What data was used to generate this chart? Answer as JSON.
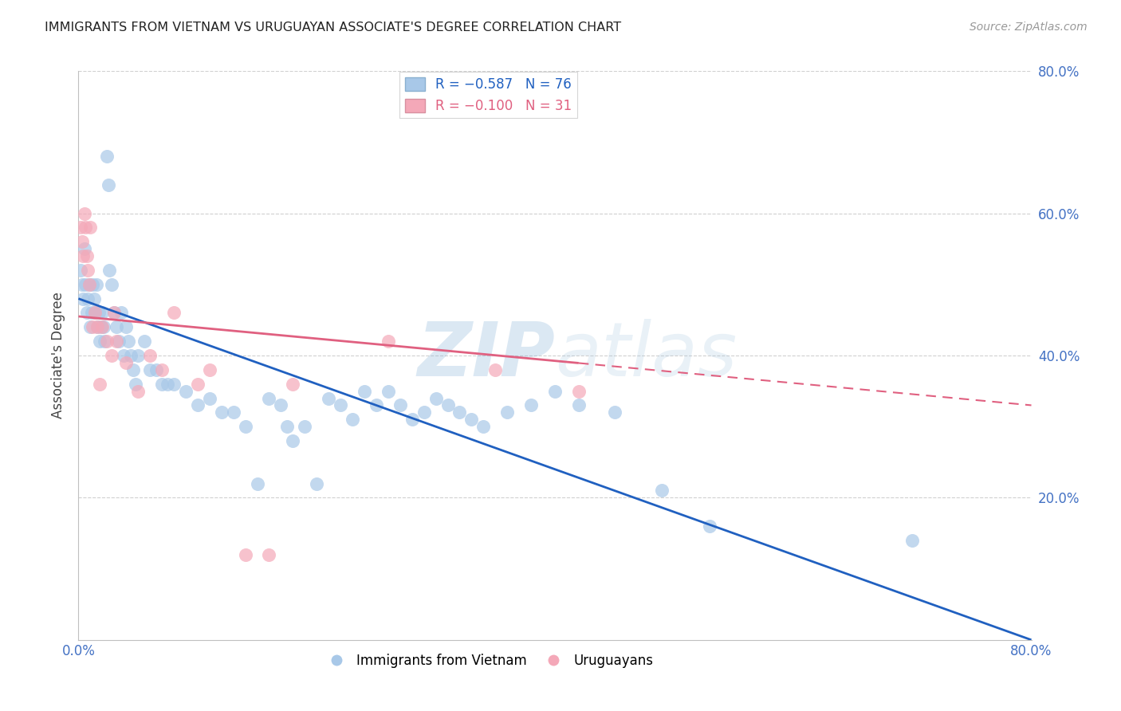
{
  "title": "IMMIGRANTS FROM VIETNAM VS URUGUAYAN ASSOCIATE'S DEGREE CORRELATION CHART",
  "source": "Source: ZipAtlas.com",
  "ylabel": "Associate's Degree",
  "legend_label1": "Immigrants from Vietnam",
  "legend_label2": "Uruguayans",
  "blue_color": "#a8c8e8",
  "pink_color": "#f4a8b8",
  "line_blue": "#2060c0",
  "line_pink": "#e06080",
  "watermark_zip": "ZIP",
  "watermark_atlas": "atlas",
  "xlim": [
    0.0,
    0.8
  ],
  "ylim": [
    0.0,
    0.8
  ],
  "blue_line_x0": 0.0,
  "blue_line_y0": 0.48,
  "blue_line_x1": 0.8,
  "blue_line_y1": 0.0,
  "pink_line_x0": 0.0,
  "pink_line_y0": 0.455,
  "pink_line_x1": 0.8,
  "pink_line_y1": 0.33,
  "blue_scatter_x": [
    0.002,
    0.003,
    0.004,
    0.005,
    0.006,
    0.007,
    0.008,
    0.009,
    0.01,
    0.011,
    0.012,
    0.013,
    0.014,
    0.015,
    0.016,
    0.017,
    0.018,
    0.019,
    0.02,
    0.021,
    0.022,
    0.024,
    0.025,
    0.026,
    0.028,
    0.03,
    0.032,
    0.034,
    0.036,
    0.038,
    0.04,
    0.042,
    0.044,
    0.046,
    0.048,
    0.05,
    0.055,
    0.06,
    0.065,
    0.07,
    0.075,
    0.08,
    0.09,
    0.1,
    0.11,
    0.12,
    0.13,
    0.14,
    0.15,
    0.16,
    0.17,
    0.175,
    0.18,
    0.19,
    0.2,
    0.21,
    0.22,
    0.23,
    0.24,
    0.25,
    0.26,
    0.27,
    0.28,
    0.29,
    0.3,
    0.31,
    0.32,
    0.33,
    0.34,
    0.36,
    0.38,
    0.4,
    0.42,
    0.45,
    0.49,
    0.53,
    0.7
  ],
  "blue_scatter_y": [
    0.52,
    0.5,
    0.48,
    0.55,
    0.5,
    0.46,
    0.48,
    0.5,
    0.44,
    0.46,
    0.5,
    0.48,
    0.46,
    0.5,
    0.44,
    0.46,
    0.42,
    0.44,
    0.46,
    0.44,
    0.42,
    0.68,
    0.64,
    0.52,
    0.5,
    0.46,
    0.44,
    0.42,
    0.46,
    0.4,
    0.44,
    0.42,
    0.4,
    0.38,
    0.36,
    0.4,
    0.42,
    0.38,
    0.38,
    0.36,
    0.36,
    0.36,
    0.35,
    0.33,
    0.34,
    0.32,
    0.32,
    0.3,
    0.22,
    0.34,
    0.33,
    0.3,
    0.28,
    0.3,
    0.22,
    0.34,
    0.33,
    0.31,
    0.35,
    0.33,
    0.35,
    0.33,
    0.31,
    0.32,
    0.34,
    0.33,
    0.32,
    0.31,
    0.3,
    0.32,
    0.33,
    0.35,
    0.33,
    0.32,
    0.21,
    0.16,
    0.14
  ],
  "pink_scatter_x": [
    0.002,
    0.003,
    0.004,
    0.005,
    0.006,
    0.007,
    0.008,
    0.009,
    0.01,
    0.012,
    0.014,
    0.016,
    0.02,
    0.024,
    0.028,
    0.032,
    0.04,
    0.06,
    0.07,
    0.08,
    0.11,
    0.14,
    0.16,
    0.18,
    0.26,
    0.35,
    0.42,
    0.03,
    0.018,
    0.05,
    0.1
  ],
  "pink_scatter_y": [
    0.58,
    0.56,
    0.54,
    0.6,
    0.58,
    0.54,
    0.52,
    0.5,
    0.58,
    0.44,
    0.46,
    0.44,
    0.44,
    0.42,
    0.4,
    0.42,
    0.39,
    0.4,
    0.38,
    0.46,
    0.38,
    0.12,
    0.12,
    0.36,
    0.42,
    0.38,
    0.35,
    0.46,
    0.36,
    0.35,
    0.36
  ],
  "grid_color": "#d0d0d0",
  "background_color": "#ffffff",
  "title_color": "#222222",
  "axis_label_color": "#444444",
  "right_axis_color": "#4472c4",
  "bottom_tick_color": "#4472c4"
}
